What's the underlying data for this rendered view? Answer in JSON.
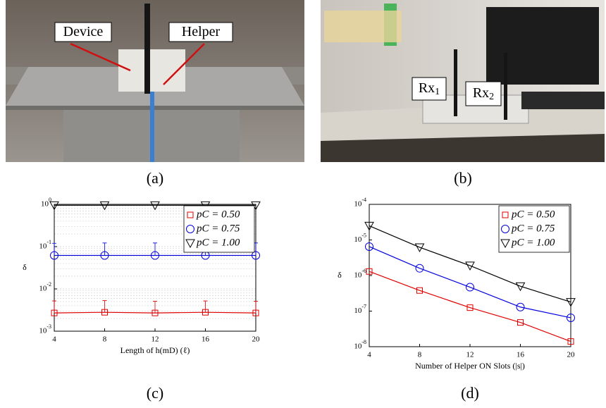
{
  "photos": [
    {
      "caption": "(a)",
      "labels": [
        {
          "text": "Device"
        },
        {
          "text": "Helper"
        }
      ]
    },
    {
      "caption": "(b)",
      "labels": [
        {
          "text": "Rx",
          "sub": "1"
        },
        {
          "text": "Rx",
          "sub": "2"
        }
      ]
    }
  ],
  "chart_data": [
    {
      "type": "line",
      "caption": "(c)",
      "xlabel": "Length of h(mD) (ℓ)",
      "ylabel": "δ",
      "x": [
        4,
        8,
        12,
        16,
        20
      ],
      "xlim": [
        4,
        20
      ],
      "xticks": [
        4,
        8,
        12,
        16,
        20
      ],
      "ylim": [
        0.001,
        1
      ],
      "log_y": true,
      "grid": true,
      "legend": "upper right",
      "yticks": [
        {
          "value": 0.001,
          "label": "10^-3"
        },
        {
          "value": 0.01,
          "label": "10^-2"
        },
        {
          "value": 0.1,
          "label": "10^-1"
        },
        {
          "value": 1,
          "label": "10^0"
        }
      ],
      "series": [
        {
          "name": "pC = 0.50",
          "color": "#e00000",
          "marker": "square",
          "values": [
            0.0027,
            0.0028,
            0.0027,
            0.0028,
            0.0027
          ],
          "errors": [
            0.0025,
            0.0025,
            0.0024,
            0.0024,
            0.0024
          ]
        },
        {
          "name": "pC = 0.75",
          "color": "#0000e0",
          "marker": "circle",
          "values": [
            0.062,
            0.062,
            0.062,
            0.062,
            0.062
          ],
          "errors": [
            0.058,
            0.06,
            0.06,
            0.06,
            0.06
          ]
        },
        {
          "name": "pC = 1.00",
          "color": "#000000",
          "marker": "triangle-down",
          "values": [
            0.95,
            0.95,
            0.95,
            0.95,
            0.95
          ]
        }
      ]
    },
    {
      "type": "line",
      "caption": "(d)",
      "xlabel": "Number of Helper ON Slots (|s|)",
      "ylabel": "δ",
      "x": [
        4,
        8,
        12,
        16,
        20
      ],
      "xlim": [
        4,
        20
      ],
      "xticks": [
        4,
        8,
        12,
        16,
        20
      ],
      "ylim": [
        1e-08,
        0.0001
      ],
      "log_y": true,
      "grid": false,
      "legend": "upper right",
      "yticks": [
        {
          "value": 1e-08,
          "label": "10^-8"
        },
        {
          "value": 1e-07,
          "label": "10^-7"
        },
        {
          "value": 1e-06,
          "label": "10^-6"
        },
        {
          "value": 1e-05,
          "label": "10^-5"
        },
        {
          "value": 0.0001,
          "label": "10^-4"
        }
      ],
      "series": [
        {
          "name": "pC = 0.50",
          "color": "#e00000",
          "marker": "square",
          "values": [
            1.3e-06,
            3.8e-07,
            1.25e-07,
            4.8e-08,
            1.4e-08
          ]
        },
        {
          "name": "pC = 0.75",
          "color": "#0000e0",
          "marker": "circle",
          "values": [
            6.5e-06,
            1.6e-06,
            4.7e-07,
            1.3e-07,
            6.5e-08
          ]
        },
        {
          "name": "pC = 1.00",
          "color": "#000000",
          "marker": "triangle-down",
          "values": [
            2.5e-05,
            6.2e-06,
            1.9e-06,
            5e-07,
            1.8e-07
          ]
        }
      ]
    }
  ]
}
